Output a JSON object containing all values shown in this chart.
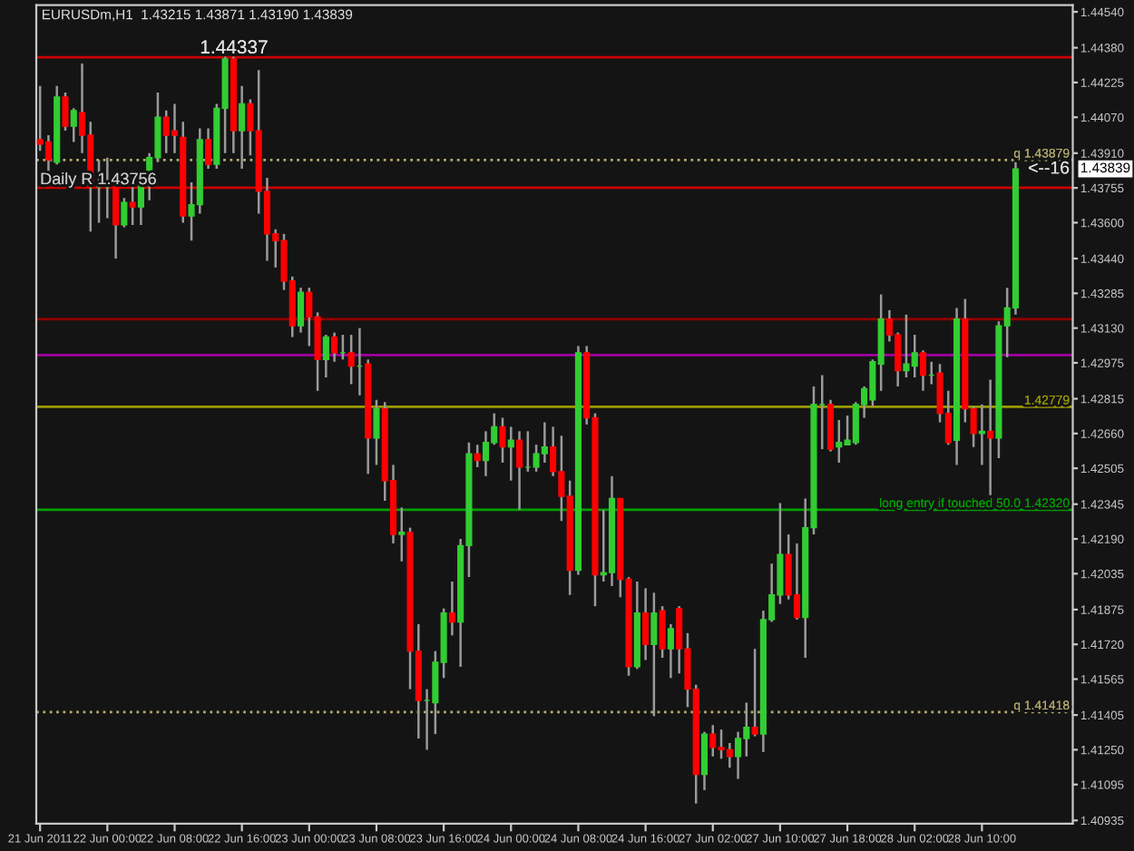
{
  "chart_data": {
    "type": "candlestick",
    "title": "EURUSDm,H1  1.43215 1.43871 1.43190 1.43839",
    "categories": [
      "21 Jun 2011",
      null,
      null,
      null,
      null,
      null,
      null,
      null,
      "22 Jun 00:00",
      null,
      null,
      null,
      null,
      null,
      null,
      null,
      "22 Jun 08:00",
      null,
      null,
      null,
      null,
      null,
      null,
      null,
      "22 Jun 16:00",
      null,
      null,
      null,
      null,
      null,
      null,
      null,
      "23 Jun 00:00",
      null,
      null,
      null,
      null,
      null,
      null,
      null,
      "23 Jun 08:00",
      null,
      null,
      null,
      null,
      null,
      null,
      null,
      "23 Jun 16:00",
      null,
      null,
      null,
      null,
      null,
      null,
      null,
      "24 Jun 00:00",
      null,
      null,
      null,
      null,
      null,
      null,
      null,
      "24 Jun 08:00",
      null,
      null,
      null,
      null,
      null,
      null,
      null,
      "24 Jun 16:00",
      null,
      null,
      null,
      null,
      null,
      null,
      null,
      "27 Jun 02:00",
      null,
      null,
      null,
      null,
      null,
      null,
      null,
      "27 Jun 10:00",
      null,
      null,
      null,
      null,
      null,
      null,
      null,
      "27 Jun 18:00",
      null,
      null,
      null,
      null,
      null,
      null,
      null,
      "28 Jun 02:00",
      null,
      null,
      null,
      null,
      null,
      null,
      null,
      "28 Jun 10:00",
      null,
      null,
      null,
      null
    ],
    "ohlc": [
      [
        1.4397,
        1.4421,
        1.4392,
        1.4395
      ],
      [
        1.4396,
        1.4399,
        1.4383,
        1.4388
      ],
      [
        1.4387,
        1.4421,
        1.4386,
        1.4416
      ],
      [
        1.4416,
        1.4418,
        1.4401,
        1.4403
      ],
      [
        1.4403,
        1.4411,
        1.4396,
        1.441
      ],
      [
        1.4409,
        1.4431,
        1.4391,
        1.4399
      ],
      [
        1.4399,
        1.4405,
        1.4356,
        1.4376
      ],
      [
        1.4376,
        1.4388,
        1.436,
        1.4376
      ],
      [
        1.4376,
        1.4389,
        1.4362,
        1.4376
      ],
      [
        1.4376,
        1.4378,
        1.4344,
        1.4359
      ],
      [
        1.4359,
        1.4371,
        1.4358,
        1.4369
      ],
      [
        1.4369,
        1.4376,
        1.4359,
        1.4367
      ],
      [
        1.4367,
        1.4379,
        1.4359,
        1.4378
      ],
      [
        1.4378,
        1.4391,
        1.437,
        1.4389
      ],
      [
        1.4389,
        1.4418,
        1.4387,
        1.4407
      ],
      [
        1.4407,
        1.441,
        1.4391,
        1.4399
      ],
      [
        1.4401,
        1.4413,
        1.4391,
        1.4399
      ],
      [
        1.4398,
        1.4405,
        1.436,
        1.4363
      ],
      [
        1.4363,
        1.4378,
        1.4352,
        1.4368
      ],
      [
        1.4368,
        1.4402,
        1.4364,
        1.4397
      ],
      [
        1.4397,
        1.4402,
        1.4384,
        1.4386
      ],
      [
        1.4386,
        1.4413,
        1.4384,
        1.4411
      ],
      [
        1.4411,
        1.4434,
        1.4391,
        1.4433
      ],
      [
        1.4433,
        1.4434,
        1.4391,
        1.4401
      ],
      [
        1.4401,
        1.4421,
        1.4384,
        1.4413
      ],
      [
        1.4413,
        1.4415,
        1.439,
        1.4401
      ],
      [
        1.4401,
        1.4428,
        1.4364,
        1.4374
      ],
      [
        1.4374,
        1.438,
        1.4343,
        1.4355
      ],
      [
        1.4355,
        1.4357,
        1.434,
        1.4352
      ],
      [
        1.4352,
        1.4355,
        1.433,
        1.4334
      ],
      [
        1.4334,
        1.4336,
        1.4309,
        1.4314
      ],
      [
        1.4314,
        1.4331,
        1.4311,
        1.4329
      ],
      [
        1.4329,
        1.4331,
        1.4305,
        1.4318
      ],
      [
        1.4318,
        1.432,
        1.4285,
        1.4299
      ],
      [
        1.4299,
        1.431,
        1.4291,
        1.4309
      ],
      [
        1.4309,
        1.4311,
        1.4298,
        1.4302
      ],
      [
        1.4302,
        1.431,
        1.4299,
        1.4302
      ],
      [
        1.4302,
        1.431,
        1.4288,
        1.4296
      ],
      [
        1.4296,
        1.4313,
        1.4283,
        1.4296
      ],
      [
        1.4297,
        1.4299,
        1.4248,
        1.4264
      ],
      [
        1.4264,
        1.4281,
        1.4252,
        1.4277
      ],
      [
        1.4277,
        1.428,
        1.4236,
        1.4245
      ],
      [
        1.4245,
        1.4252,
        1.4217,
        1.4221
      ],
      [
        1.4221,
        1.4233,
        1.4209,
        1.4222
      ],
      [
        1.4222,
        1.4224,
        1.4152,
        1.4169
      ],
      [
        1.4169,
        1.4181,
        1.413,
        1.4147
      ],
      [
        1.4147,
        1.4152,
        1.4125,
        1.4147
      ],
      [
        1.4146,
        1.4169,
        1.4132,
        1.4164
      ],
      [
        1.4164,
        1.4188,
        1.4157,
        1.4186
      ],
      [
        1.4186,
        1.42,
        1.4176,
        1.4182
      ],
      [
        1.4182,
        1.4219,
        1.4162,
        1.4216
      ],
      [
        1.4216,
        1.4262,
        1.4202,
        1.4257
      ],
      [
        1.4257,
        1.4261,
        1.4251,
        1.4254
      ],
      [
        1.4254,
        1.4267,
        1.4247,
        1.4262
      ],
      [
        1.4262,
        1.4275,
        1.4261,
        1.4269
      ],
      [
        1.4269,
        1.4273,
        1.4253,
        1.426
      ],
      [
        1.426,
        1.4269,
        1.4245,
        1.4263
      ],
      [
        1.4263,
        1.4267,
        1.4232,
        1.4251
      ],
      [
        1.4251,
        1.4267,
        1.4249,
        1.4251
      ],
      [
        1.4251,
        1.4261,
        1.4249,
        1.4257
      ],
      [
        1.4257,
        1.4271,
        1.4253,
        1.426
      ],
      [
        1.426,
        1.4269,
        1.4247,
        1.4249
      ],
      [
        1.4249,
        1.4265,
        1.4227,
        1.4238
      ],
      [
        1.4238,
        1.4245,
        1.4194,
        1.4205
      ],
      [
        1.4205,
        1.4305,
        1.4203,
        1.4302
      ],
      [
        1.4302,
        1.4305,
        1.427,
        1.4273
      ],
      [
        1.4273,
        1.4275,
        1.4189,
        1.4203
      ],
      [
        1.4203,
        1.4232,
        1.42,
        1.4204
      ],
      [
        1.4204,
        1.4247,
        1.4198,
        1.4237
      ],
      [
        1.4237,
        1.4237,
        1.4193,
        1.4201
      ],
      [
        1.4201,
        1.4202,
        1.4158,
        1.4162
      ],
      [
        1.4162,
        1.42,
        1.4161,
        1.4186
      ],
      [
        1.4186,
        1.4197,
        1.4165,
        1.4172
      ],
      [
        1.4172,
        1.4195,
        1.414,
        1.4186
      ],
      [
        1.4187,
        1.4189,
        1.4166,
        1.417
      ],
      [
        1.417,
        1.4181,
        1.4157,
        1.4179
      ],
      [
        1.4188,
        1.4189,
        1.4159,
        1.417
      ],
      [
        1.417,
        1.4177,
        1.4144,
        1.4152
      ],
      [
        1.4152,
        1.4154,
        1.4101,
        1.4114
      ],
      [
        1.4114,
        1.4133,
        1.4107,
        1.4132
      ],
      [
        1.4132,
        1.4136,
        1.4122,
        1.4126
      ],
      [
        1.4126,
        1.4134,
        1.4121,
        1.4125
      ],
      [
        1.4125,
        1.4128,
        1.4117,
        1.4122
      ],
      [
        1.4122,
        1.4133,
        1.4112,
        1.413
      ],
      [
        1.413,
        1.4146,
        1.4122,
        1.4135
      ],
      [
        1.4135,
        1.417,
        1.4131,
        1.4132
      ],
      [
        1.4132,
        1.4187,
        1.4124,
        1.4183
      ],
      [
        1.4183,
        1.4208,
        1.4182,
        1.4194
      ],
      [
        1.4194,
        1.4235,
        1.419,
        1.4212
      ],
      [
        1.4212,
        1.4221,
        1.4192,
        1.4194
      ],
      [
        1.4194,
        1.4217,
        1.4183,
        1.4184
      ],
      [
        1.4184,
        1.4237,
        1.4166,
        1.4224
      ],
      [
        1.4224,
        1.4287,
        1.4221,
        1.4279
      ],
      [
        1.4279,
        1.4292,
        1.4259,
        1.4279
      ],
      [
        1.4279,
        1.4281,
        1.4258,
        1.4259
      ],
      [
        1.426,
        1.4272,
        1.4253,
        1.4262
      ],
      [
        1.4261,
        1.4274,
        1.4261,
        1.4263
      ],
      [
        1.4262,
        1.428,
        1.4261,
        1.4279
      ],
      [
        1.4279,
        1.4287,
        1.4273,
        1.4286
      ],
      [
        1.4281,
        1.4299,
        1.4278,
        1.4298
      ],
      [
        1.4297,
        1.4328,
        1.4285,
        1.4317
      ],
      [
        1.4317,
        1.4321,
        1.4307,
        1.431
      ],
      [
        1.431,
        1.4311,
        1.4287,
        1.4294
      ],
      [
        1.4294,
        1.4319,
        1.4291,
        1.4297
      ],
      [
        1.4296,
        1.431,
        1.4291,
        1.4302
      ],
      [
        1.4302,
        1.4303,
        1.4285,
        1.4292
      ],
      [
        1.4292,
        1.4298,
        1.4288,
        1.4292
      ],
      [
        1.4293,
        1.4297,
        1.4271,
        1.4275
      ],
      [
        1.4275,
        1.4285,
        1.4261,
        1.4262
      ],
      [
        1.4263,
        1.4322,
        1.4252,
        1.4317
      ],
      [
        1.4317,
        1.4326,
        1.4271,
        1.4277
      ],
      [
        1.4277,
        1.4278,
        1.426,
        1.4266
      ],
      [
        1.4266,
        1.4279,
        1.4252,
        1.4267
      ],
      [
        1.4267,
        1.429,
        1.4236,
        1.4264
      ],
      [
        1.4264,
        1.4316,
        1.4255,
        1.4314
      ],
      [
        1.4314,
        1.4331,
        1.43,
        1.4322
      ],
      [
        1.4322,
        1.4387,
        1.4319,
        1.4384
      ]
    ],
    "colors": [
      "#ff0000",
      "#ff0000",
      "#32cd32",
      "#ff0000",
      "#32cd32",
      "#ff0000",
      "#ff0000",
      "#32cd32",
      "#32cd32",
      "#ff0000",
      "#32cd32",
      "#ff0000",
      "#32cd32",
      "#32cd32",
      "#32cd32",
      "#ff0000",
      "#ff0000",
      "#ff0000",
      "#32cd32",
      "#32cd32",
      "#ff0000",
      "#32cd32",
      "#32cd32",
      "#ff0000",
      "#32cd32",
      "#ff0000",
      "#ff0000",
      "#ff0000",
      "#ff0000",
      "#ff0000",
      "#ff0000",
      "#32cd32",
      "#ff0000",
      "#ff0000",
      "#32cd32",
      "#ff0000",
      "#32cd32",
      "#ff0000",
      "#32cd32",
      "#ff0000",
      "#32cd32",
      "#ff0000",
      "#ff0000",
      "#32cd32",
      "#ff0000",
      "#ff0000",
      "#32cd32",
      "#32cd32",
      "#32cd32",
      "#ff0000",
      "#32cd32",
      "#32cd32",
      "#ff0000",
      "#32cd32",
      "#32cd32",
      "#ff0000",
      "#32cd32",
      "#ff0000",
      "#32cd32",
      "#32cd32",
      "#32cd32",
      "#ff0000",
      "#ff0000",
      "#ff0000",
      "#32cd32",
      "#ff0000",
      "#ff0000",
      "#32cd32",
      "#32cd32",
      "#ff0000",
      "#ff0000",
      "#32cd32",
      "#ff0000",
      "#32cd32",
      "#ff0000",
      "#32cd32",
      "#ff0000",
      "#ff0000",
      "#ff0000",
      "#32cd32",
      "#ff0000",
      "#ff0000",
      "#ff0000",
      "#32cd32",
      "#32cd32",
      "#ff0000",
      "#32cd32",
      "#32cd32",
      "#32cd32",
      "#ff0000",
      "#ff0000",
      "#32cd32",
      "#32cd32",
      "#32cd32",
      "#ff0000",
      "#32cd32",
      "#32cd32",
      "#32cd32",
      "#32cd32",
      "#32cd32",
      "#32cd32",
      "#ff0000",
      "#ff0000",
      "#32cd32",
      "#32cd32",
      "#ff0000",
      "#32cd32",
      "#ff0000",
      "#ff0000",
      "#32cd32",
      "#ff0000",
      "#ff0000",
      "#32cd32",
      "#ff0000",
      "#32cd32",
      "#32cd32",
      "#32cd32"
    ],
    "ylim": [
      1.4092,
      1.4457
    ],
    "yticks": [
      {
        "value": 1.4454,
        "label": "1.44540"
      },
      {
        "value": 1.4438,
        "label": "1.44380"
      },
      1.44225,
      {
        "value": 1.4407,
        "label": "1.44070"
      },
      {
        "value": 1.4391,
        "label": "1.43910"
      },
      1.43755,
      {
        "value": 1.436,
        "label": "1.43600"
      },
      {
        "value": 1.4344,
        "label": "1.43440"
      },
      1.43285,
      {
        "value": 1.4313,
        "label": "1.43130"
      },
      1.42975,
      1.42815,
      {
        "value": 1.4266,
        "label": "1.42660"
      },
      1.42505,
      1.42345,
      {
        "value": 1.4219,
        "label": "1.42190"
      },
      1.42035,
      1.41875,
      {
        "value": 1.4172,
        "label": "1.41720"
      },
      1.41565,
      1.41405,
      {
        "value": 1.4125,
        "label": "1.41250"
      },
      1.41095,
      1.40935
    ],
    "ref_lines": [
      {
        "axis": "y",
        "value": 1.44337,
        "label": "1.44337",
        "color": "#cc0000",
        "line_style": "solid"
      },
      {
        "axis": "y",
        "value": 1.43879,
        "label": "q 1.43879",
        "color": "#b4aa6e",
        "line_style": "dotted"
      },
      {
        "axis": "y",
        "value": 1.43756,
        "label": "Daily R 1.43756",
        "color": "#cc0000",
        "line_style": "solid"
      },
      {
        "axis": "y",
        "value": 1.4317,
        "color": "#8b0000",
        "line_style": "solid"
      },
      {
        "axis": "y",
        "value": 1.4301,
        "color": "#a000a0",
        "line_style": "solid"
      },
      {
        "axis": "y",
        "value": 1.42779,
        "label": "1.42779",
        "color": "#9a9a00",
        "line_style": "solid"
      },
      {
        "axis": "y",
        "value": 1.4232,
        "label": "long entry if touched 50.0 1.42320",
        "color": "#00a000",
        "line_style": "solid"
      },
      {
        "axis": "y",
        "value": 1.41418,
        "label": "q 1.41418",
        "color": "#b4aa6e",
        "line_style": "dotted"
      }
    ],
    "annotations": [
      {
        "text": "<--16",
        "y": 1.43839
      },
      "1.43839"
    ],
    "grid": false,
    "legend": false
  }
}
